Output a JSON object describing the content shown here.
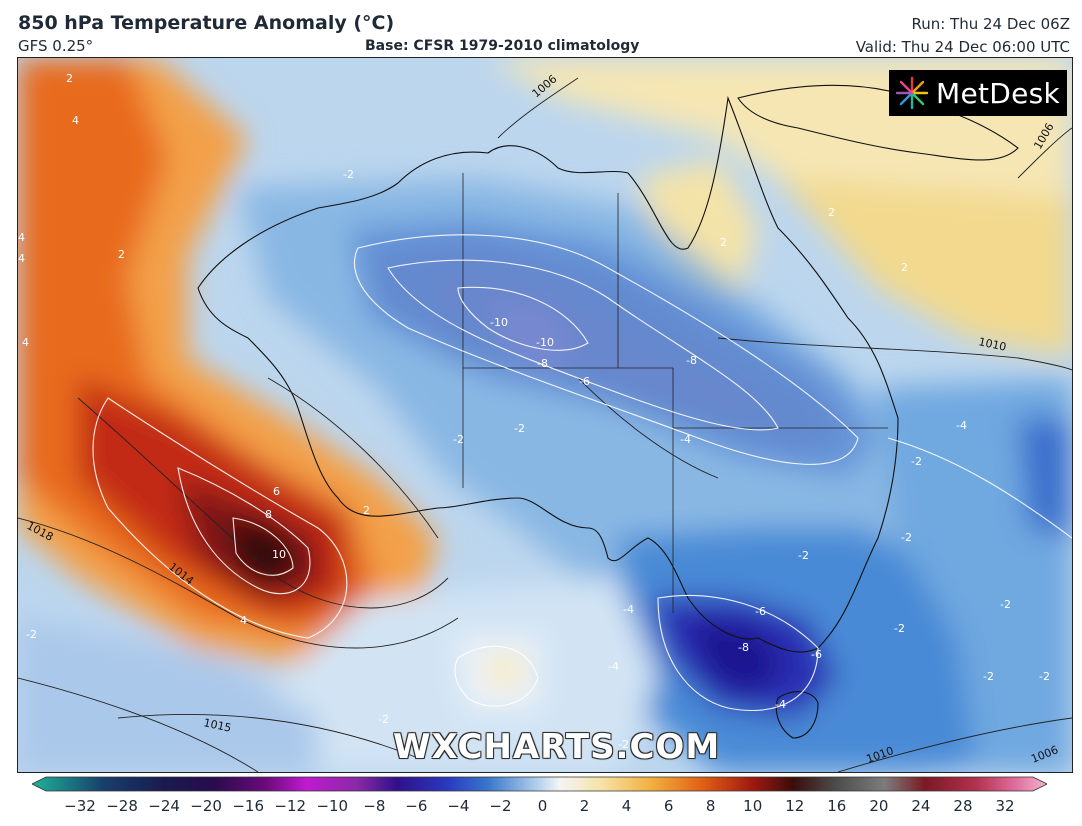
{
  "header": {
    "title": "850 hPa Temperature Anomaly (°C)",
    "model": "GFS 0.25°",
    "base": "Base: CFSR 1979-2010 climatology",
    "run": "Run: Thu 24 Dec 06Z",
    "valid": "Valid: Thu 24 Dec 06:00 UTC"
  },
  "branding": {
    "logo_text": "MetDesk",
    "logo_icon": "metdesk-starburst-icon",
    "watermark": "WXCHARTS.COM"
  },
  "map": {
    "isobar_labels": [
      "1006",
      "1006",
      "1010",
      "1018",
      "1014",
      "1015",
      "1010",
      "1006"
    ],
    "anomaly_labels": [
      "-10",
      "-10",
      "-8",
      "-6",
      "-8",
      "-4",
      "-4",
      "-2",
      "-2",
      "-2",
      "-2",
      "-2",
      "-2",
      "-2",
      "-2",
      "-2",
      "-2",
      "-2",
      "-6",
      "-8",
      "-6",
      "-4",
      "-4",
      "-2",
      "-4",
      "2",
      "4",
      "4",
      "4",
      "4",
      "4",
      "6",
      "8",
      "10",
      "2",
      "2",
      "2",
      "2",
      "2",
      "-2"
    ]
  },
  "colorbar": {
    "ticks": [
      "−32",
      "−28",
      "−24",
      "−20",
      "−16",
      "−12",
      "−10",
      "−8",
      "−6",
      "−4",
      "−2",
      "0",
      "2",
      "4",
      "6",
      "8",
      "10",
      "12",
      "16",
      "20",
      "24",
      "28",
      "32"
    ],
    "colors": [
      "#1fb39a",
      "#173f6b",
      "#1a1a50",
      "#2a0b4e",
      "#6a0a7a",
      "#b018c8",
      "#8a2aa8",
      "#30108a",
      "#2a3ac0",
      "#3a78cc",
      "#9cc2e6",
      "#f4f4f4",
      "#f6e3a8",
      "#f2b040",
      "#e26014",
      "#a01810",
      "#3a0d0a",
      "#4a4a4a",
      "#7c7c7c",
      "#7a1a22",
      "#b43050",
      "#e070a0",
      "#f2b4cf"
    ]
  }
}
